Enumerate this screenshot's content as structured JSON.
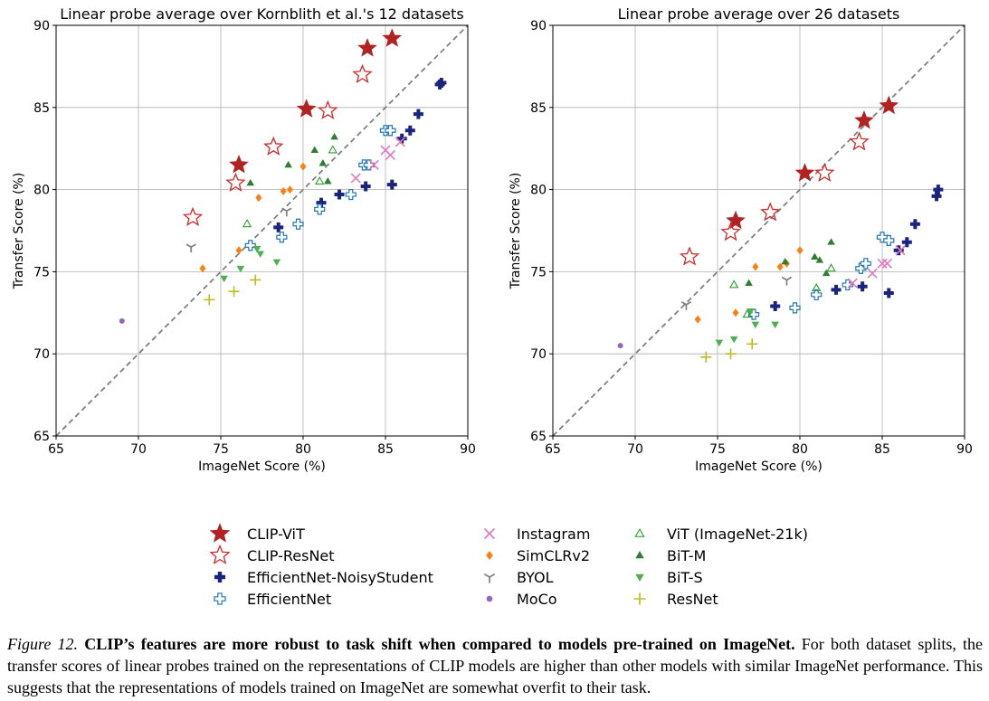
{
  "chart_data": [
    {
      "type": "scatter",
      "title": "Linear probe average over Kornblith et al.'s 12 datasets",
      "xlabel": "ImageNet Score (%)",
      "ylabel": "Transfer Score (%)",
      "xlim": [
        65,
        90
      ],
      "ylim": [
        65,
        90
      ],
      "xticks": [
        "65",
        "70",
        "75",
        "80",
        "85",
        "90"
      ],
      "yticks": [
        "65",
        "70",
        "75",
        "80",
        "85",
        "90"
      ],
      "diagonal": true,
      "grid": true,
      "series": [
        {
          "name": "CLIP-ViT",
          "marker": "star",
          "filled": true,
          "color": "#b22222",
          "points": [
            [
              76.1,
              81.5
            ],
            [
              80.2,
              84.9
            ],
            [
              83.9,
              88.6
            ],
            [
              85.4,
              89.2
            ]
          ]
        },
        {
          "name": "CLIP-ResNet",
          "marker": "star",
          "filled": false,
          "color": "#d62728",
          "points": [
            [
              73.3,
              78.3
            ],
            [
              75.9,
              80.4
            ],
            [
              78.2,
              82.6
            ],
            [
              81.5,
              84.8
            ],
            [
              83.6,
              87.0
            ]
          ]
        },
        {
          "name": "EfficientNet-NoisyStudent",
          "marker": "plus",
          "filled": true,
          "color": "#1a237e",
          "points": [
            [
              78.5,
              77.7
            ],
            [
              81.1,
              79.2
            ],
            [
              82.2,
              79.7
            ],
            [
              83.8,
              80.2
            ],
            [
              85.4,
              80.3
            ],
            [
              86.0,
              83.1
            ],
            [
              86.5,
              83.6
            ],
            [
              87.0,
              84.6
            ],
            [
              88.3,
              86.4
            ],
            [
              88.4,
              86.5
            ]
          ]
        },
        {
          "name": "EfficientNet",
          "marker": "plus",
          "filled": false,
          "color": "#1f77b4",
          "points": [
            [
              76.8,
              76.6
            ],
            [
              78.7,
              77.1
            ],
            [
              79.7,
              77.9
            ],
            [
              81.0,
              78.8
            ],
            [
              82.9,
              79.7
            ],
            [
              83.7,
              81.5
            ],
            [
              84.0,
              81.5
            ],
            [
              85.0,
              83.6
            ],
            [
              85.3,
              83.6
            ]
          ]
        },
        {
          "name": "Instagram",
          "marker": "x",
          "filled": true,
          "color": "#e377c2",
          "points": [
            [
              83.2,
              80.7
            ],
            [
              84.3,
              81.5
            ],
            [
              85.0,
              82.4
            ],
            [
              85.3,
              82.1
            ],
            [
              85.9,
              82.9
            ]
          ]
        },
        {
          "name": "SimCLRv2",
          "marker": "diamond",
          "filled": true,
          "color": "#ff7f0e",
          "points": [
            [
              73.9,
              75.2
            ],
            [
              76.1,
              76.3
            ],
            [
              77.3,
              79.5
            ],
            [
              78.8,
              79.9
            ],
            [
              79.2,
              80.0
            ],
            [
              80.0,
              81.4
            ]
          ]
        },
        {
          "name": "BYOL",
          "marker": "tri_down",
          "filled": false,
          "color": "#7f7f7f",
          "points": [
            [
              73.2,
              76.5
            ],
            [
              79.0,
              78.7
            ]
          ]
        },
        {
          "name": "MoCo",
          "marker": "circle",
          "filled": true,
          "color": "#9467bd",
          "points": [
            [
              69.0,
              72.0
            ]
          ]
        },
        {
          "name": "ViT (ImageNet-21k)",
          "marker": "triangle_up",
          "filled": false,
          "color": "#2ca02c",
          "points": [
            [
              76.6,
              77.9
            ],
            [
              81.0,
              80.5
            ],
            [
              81.8,
              82.4
            ]
          ]
        },
        {
          "name": "BiT-M",
          "marker": "triangle_up",
          "filled": true,
          "color": "#2e7d32",
          "points": [
            [
              76.8,
              80.4
            ],
            [
              79.1,
              81.5
            ],
            [
              80.7,
              82.4
            ],
            [
              81.2,
              81.6
            ],
            [
              81.5,
              80.5
            ],
            [
              81.9,
              83.2
            ]
          ]
        },
        {
          "name": "BiT-S",
          "marker": "triangle_down",
          "filled": true,
          "color": "#4caf50",
          "points": [
            [
              75.2,
              74.6
            ],
            [
              76.2,
              75.2
            ],
            [
              77.2,
              76.4
            ],
            [
              77.4,
              76.1
            ],
            [
              78.4,
              75.6
            ]
          ]
        },
        {
          "name": "ResNet",
          "marker": "plus_thin",
          "filled": true,
          "color": "#bcbd22",
          "points": [
            [
              74.3,
              73.3
            ],
            [
              75.8,
              73.8
            ],
            [
              77.1,
              74.5
            ]
          ]
        }
      ]
    },
    {
      "type": "scatter",
      "title": "Linear probe average over 26 datasets",
      "xlabel": "ImageNet Score (%)",
      "ylabel": "Transfer Score (%)",
      "xlim": [
        65,
        90
      ],
      "ylim": [
        65,
        90
      ],
      "xticks": [
        "65",
        "70",
        "75",
        "80",
        "85",
        "90"
      ],
      "yticks": [
        "65",
        "70",
        "75",
        "80",
        "85",
        "90"
      ],
      "diagonal": true,
      "grid": true,
      "series": [
        {
          "name": "CLIP-ViT",
          "marker": "star",
          "filled": true,
          "color": "#b22222",
          "points": [
            [
              76.1,
              78.1
            ],
            [
              80.3,
              81.0
            ],
            [
              83.9,
              84.2
            ],
            [
              85.4,
              85.1
            ]
          ]
        },
        {
          "name": "CLIP-ResNet",
          "marker": "star",
          "filled": false,
          "color": "#d62728",
          "points": [
            [
              73.3,
              75.9
            ],
            [
              75.8,
              77.4
            ],
            [
              78.2,
              78.6
            ],
            [
              81.5,
              81.0
            ],
            [
              83.6,
              82.9
            ]
          ]
        },
        {
          "name": "EfficientNet-NoisyStudent",
          "marker": "plus",
          "filled": true,
          "color": "#1a237e",
          "points": [
            [
              78.5,
              72.9
            ],
            [
              82.2,
              73.9
            ],
            [
              83.8,
              74.1
            ],
            [
              85.4,
              73.7
            ],
            [
              86.0,
              76.3
            ],
            [
              86.5,
              76.8
            ],
            [
              87.0,
              77.9
            ],
            [
              88.3,
              79.6
            ],
            [
              88.4,
              80.0
            ]
          ]
        },
        {
          "name": "EfficientNet",
          "marker": "plus",
          "filled": false,
          "color": "#1f77b4",
          "points": [
            [
              77.2,
              72.4
            ],
            [
              79.7,
              72.8
            ],
            [
              81.0,
              73.6
            ],
            [
              82.9,
              74.2
            ],
            [
              83.7,
              75.2
            ],
            [
              84.0,
              75.5
            ],
            [
              85.0,
              77.1
            ],
            [
              85.4,
              76.9
            ]
          ]
        },
        {
          "name": "Instagram",
          "marker": "x",
          "filled": true,
          "color": "#e377c2",
          "points": [
            [
              83.2,
              74.3
            ],
            [
              84.4,
              74.9
            ],
            [
              85.0,
              75.5
            ],
            [
              85.3,
              75.5
            ],
            [
              86.1,
              76.3
            ]
          ]
        },
        {
          "name": "SimCLRv2",
          "marker": "diamond",
          "filled": true,
          "color": "#ff7f0e",
          "points": [
            [
              73.8,
              72.1
            ],
            [
              76.1,
              72.5
            ],
            [
              77.3,
              75.3
            ],
            [
              78.8,
              75.3
            ],
            [
              79.2,
              75.5
            ],
            [
              80.0,
              76.3
            ]
          ]
        },
        {
          "name": "BYOL",
          "marker": "tri_down",
          "filled": false,
          "color": "#7f7f7f",
          "points": [
            [
              73.1,
              73.0
            ],
            [
              79.2,
              74.5
            ]
          ]
        },
        {
          "name": "MoCo",
          "marker": "circle",
          "filled": true,
          "color": "#9467bd",
          "points": [
            [
              69.1,
              70.5
            ]
          ]
        },
        {
          "name": "ViT (ImageNet-21k)",
          "marker": "triangle_up",
          "filled": false,
          "color": "#2ca02c",
          "points": [
            [
              76.0,
              74.2
            ],
            [
              76.8,
              72.4
            ],
            [
              81.0,
              74.0
            ],
            [
              81.9,
              75.2
            ]
          ]
        },
        {
          "name": "BiT-M",
          "marker": "triangle_up",
          "filled": true,
          "color": "#2e7d32",
          "points": [
            [
              76.9,
              74.3
            ],
            [
              79.1,
              75.6
            ],
            [
              80.9,
              75.9
            ],
            [
              81.2,
              75.7
            ],
            [
              81.6,
              74.9
            ],
            [
              81.9,
              76.8
            ]
          ]
        },
        {
          "name": "BiT-S",
          "marker": "triangle_down",
          "filled": true,
          "color": "#4caf50",
          "points": [
            [
              75.1,
              70.7
            ],
            [
              76.0,
              70.9
            ],
            [
              77.0,
              72.6
            ],
            [
              77.3,
              71.8
            ],
            [
              78.5,
              71.8
            ]
          ]
        },
        {
          "name": "ResNet",
          "marker": "plus_thin",
          "filled": true,
          "color": "#bcbd22",
          "points": [
            [
              74.3,
              69.8
            ],
            [
              75.8,
              70.0
            ],
            [
              77.1,
              70.6
            ]
          ]
        }
      ]
    }
  ],
  "caption": {
    "label": "Figure 12.",
    "bold": "CLIP’s features are more robust to task shift when compared to models pre-trained on ImageNet.",
    "text": "For both dataset splits, the transfer scores of linear probes trained on the representations of CLIP models are higher than other models with similar ImageNet performance. This suggests that the representations of models trained on ImageNet are somewhat overfit to their task."
  }
}
